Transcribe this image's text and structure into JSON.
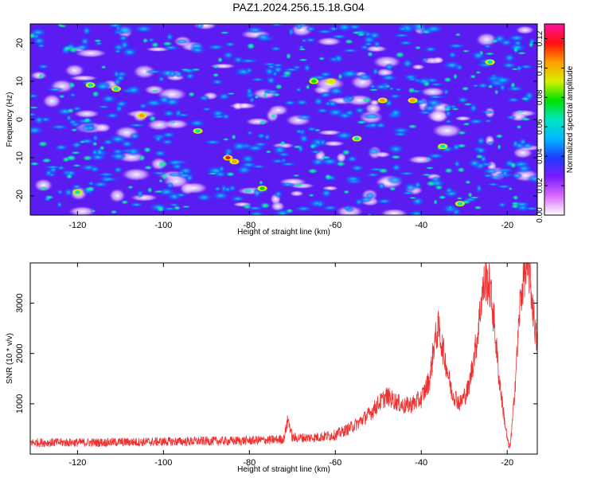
{
  "title": "PAZ1.2024.256.15.18.G04",
  "chart_data": [
    {
      "type": "heatmap",
      "xlabel": "Height of straight line (km)",
      "ylabel": "Frequency (Hz)",
      "colorbar_label": "Normalized spectral amplitude",
      "xlim": [
        -131,
        -13
      ],
      "ylim": [
        -25,
        25
      ],
      "xticks": [
        -120,
        -100,
        -80,
        -60,
        -40,
        -20
      ],
      "yticks": [
        -20,
        -10,
        0,
        10,
        20
      ],
      "clim": [
        0,
        0.13
      ],
      "colorbar_ticks": [
        "0.00",
        "0.02",
        "0.04",
        "0.06",
        "0.08",
        "0.10",
        "0.12"
      ],
      "colormap": [
        "#ffffff",
        "#d96bff",
        "#7a1cff",
        "#1f3cff",
        "#00b8ff",
        "#00e6c0",
        "#00e000",
        "#d8f000",
        "#ff9d00",
        "#ff1010",
        "#ff10a0"
      ],
      "hotspots": [
        {
          "x": -85,
          "y": -10,
          "value": 0.12
        },
        {
          "x": -83.5,
          "y": -11,
          "value": 0.11
        },
        {
          "x": -105,
          "y": 1,
          "value": 0.1
        },
        {
          "x": -42,
          "y": 5,
          "value": 0.11
        },
        {
          "x": -49,
          "y": 5,
          "value": 0.1
        },
        {
          "x": -61,
          "y": 10,
          "value": 0.09
        },
        {
          "x": -65,
          "y": 10,
          "value": 0.08
        },
        {
          "x": -77,
          "y": -18,
          "value": 0.08
        },
        {
          "x": -117,
          "y": 9,
          "value": 0.07
        },
        {
          "x": -111,
          "y": 8,
          "value": 0.07
        },
        {
          "x": -24,
          "y": 15,
          "value": 0.07
        },
        {
          "x": -55,
          "y": -5,
          "value": 0.06
        },
        {
          "x": -120,
          "y": -19,
          "value": 0.06
        },
        {
          "x": -35,
          "y": -7,
          "value": 0.06
        },
        {
          "x": -92,
          "y": -3,
          "value": 0.06
        },
        {
          "x": -31,
          "y": -22,
          "value": 0.06
        }
      ]
    },
    {
      "type": "line",
      "xlabel": "Height of straight line (km)",
      "ylabel": "SNR (10 * v/v)",
      "xlim": [
        -131,
        -13
      ],
      "ylim": [
        0,
        3800
      ],
      "xticks": [
        -120,
        -100,
        -80,
        -60,
        -40,
        -20
      ],
      "yticks": [
        1000,
        2000,
        3000
      ],
      "line_color": "#f03030",
      "series": [
        {
          "x": [
            -131,
            -125,
            -120,
            -115,
            -110,
            -105,
            -100,
            -95,
            -90,
            -85,
            -80,
            -75,
            -72,
            -71,
            -70,
            -65,
            -60,
            -57,
            -55,
            -52,
            -50,
            -48,
            -46,
            -44,
            -42,
            -40,
            -38,
            -37,
            -36,
            -35,
            -34,
            -33,
            -31,
            -29,
            -27,
            -26,
            -25,
            -24,
            -23,
            -22,
            -21,
            -20,
            -19.5,
            -19,
            -18,
            -17,
            -16,
            -15,
            -14,
            -13
          ],
          "y": [
            230,
            230,
            230,
            230,
            240,
            240,
            250,
            250,
            260,
            260,
            270,
            280,
            300,
            700,
            320,
            330,
            380,
            500,
            600,
            800,
            1000,
            1150,
            1050,
            950,
            1000,
            1100,
            1500,
            2200,
            2500,
            2100,
            1700,
            1250,
            1000,
            1300,
            2300,
            3100,
            3500,
            3300,
            2600,
            1600,
            900,
            300,
            100,
            400,
            1600,
            3000,
            3600,
            3700,
            2900,
            2100
          ]
        }
      ]
    }
  ]
}
